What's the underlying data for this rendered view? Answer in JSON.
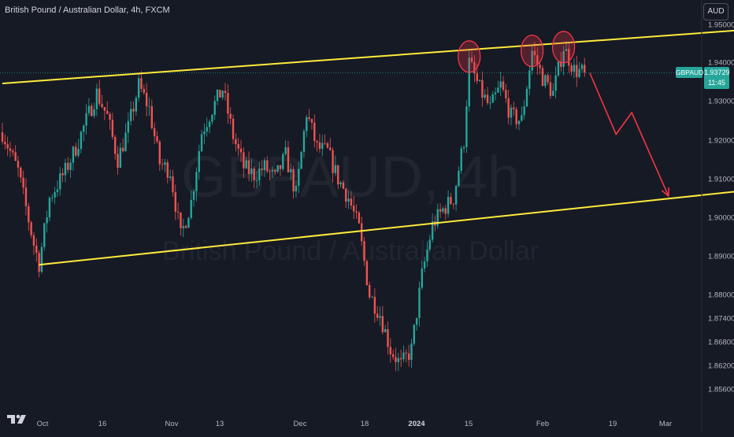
{
  "header": {
    "title": "British Pound / Australian Dollar, 4h, FXCM"
  },
  "watermark": {
    "symbol": "GBPAUD, 4h",
    "name": "British Pound / Australian Dollar"
  },
  "currency_button": {
    "label": "AUD"
  },
  "last_price": {
    "symbol_tag": "GBPAUD",
    "price": "1.93729",
    "countdown": "11:45",
    "color": "#26a69a"
  },
  "colors": {
    "background": "#161a25",
    "up": "#26a69a",
    "down": "#ef5350",
    "channel": "#ffeb3b",
    "arrow": "#f23645",
    "marker": "#f23645"
  },
  "chart_data": {
    "type": "candlestick",
    "y_axis": {
      "ticks": [
        "1.95000",
        "1.94000",
        "1.93000",
        "1.92000",
        "1.91000",
        "1.90000",
        "1.89000",
        "1.88000",
        "1.87400",
        "1.86800",
        "1.86200",
        "1.85600"
      ]
    },
    "x_axis": {
      "ticks": [
        {
          "label": "Oct",
          "bold": false
        },
        {
          "label": "16",
          "bold": false
        },
        {
          "label": "Nov",
          "bold": false
        },
        {
          "label": "13",
          "bold": false
        },
        {
          "label": "Dec",
          "bold": false
        },
        {
          "label": "18",
          "bold": false
        },
        {
          "label": "2024",
          "bold": true
        },
        {
          "label": "15",
          "bold": false
        },
        {
          "label": "Feb",
          "bold": false
        },
        {
          "label": "19",
          "bold": false
        },
        {
          "label": "Mar",
          "bold": false
        }
      ]
    },
    "channel_lines": [
      {
        "name": "upper-trendline",
        "from": [
          0,
          1.9345
        ],
        "to": [
          140,
          1.9484
        ]
      },
      {
        "name": "lower-trendline",
        "from": [
          7,
          1.8877
        ],
        "to": [
          140,
          1.9067
        ]
      }
    ],
    "circled_peaks": [
      {
        "index": 89,
        "price": 1.9415
      },
      {
        "index": 101,
        "price": 1.943
      },
      {
        "index": 107,
        "price": 1.944
      }
    ],
    "projection_path": [
      [
        112,
        1.9372
      ],
      [
        117,
        1.9215
      ],
      [
        120,
        1.927
      ],
      [
        127,
        1.9055
      ]
    ],
    "close_path": [
      [
        0,
        1.922
      ],
      [
        3,
        1.912
      ],
      [
        6,
        1.893
      ],
      [
        7,
        1.888
      ],
      [
        9,
        1.905
      ],
      [
        12,
        1.912
      ],
      [
        14,
        1.918
      ],
      [
        16,
        1.925
      ],
      [
        18,
        1.932
      ],
      [
        20,
        1.926
      ],
      [
        22,
        1.915
      ],
      [
        24,
        1.923
      ],
      [
        26,
        1.934
      ],
      [
        28,
        1.928
      ],
      [
        30,
        1.914
      ],
      [
        32,
        1.912
      ],
      [
        34,
        1.895
      ],
      [
        36,
        1.904
      ],
      [
        38,
        1.922
      ],
      [
        40,
        1.928
      ],
      [
        42,
        1.933
      ],
      [
        44,
        1.921
      ],
      [
        46,
        1.913
      ],
      [
        48,
        1.911
      ],
      [
        50,
        1.913
      ],
      [
        52,
        1.91
      ],
      [
        54,
        1.916
      ],
      [
        56,
        1.906
      ],
      [
        58,
        1.927
      ],
      [
        60,
        1.918
      ],
      [
        62,
        1.917
      ],
      [
        64,
        1.91
      ],
      [
        66,
        1.905
      ],
      [
        68,
        1.897
      ],
      [
        70,
        1.88
      ],
      [
        72,
        1.875
      ],
      [
        74,
        1.866
      ],
      [
        76,
        1.862
      ],
      [
        78,
        1.866
      ],
      [
        80,
        1.885
      ],
      [
        82,
        1.898
      ],
      [
        84,
        1.902
      ],
      [
        86,
        1.905
      ],
      [
        88,
        1.92
      ],
      [
        89,
        1.94
      ],
      [
        91,
        1.933
      ],
      [
        93,
        1.928
      ],
      [
        95,
        1.934
      ],
      [
        97,
        1.926
      ],
      [
        99,
        1.925
      ],
      [
        101,
        1.943
      ],
      [
        103,
        1.936
      ],
      [
        105,
        1.932
      ],
      [
        107,
        1.944
      ],
      [
        109,
        1.938
      ],
      [
        111,
        1.9373
      ]
    ]
  }
}
